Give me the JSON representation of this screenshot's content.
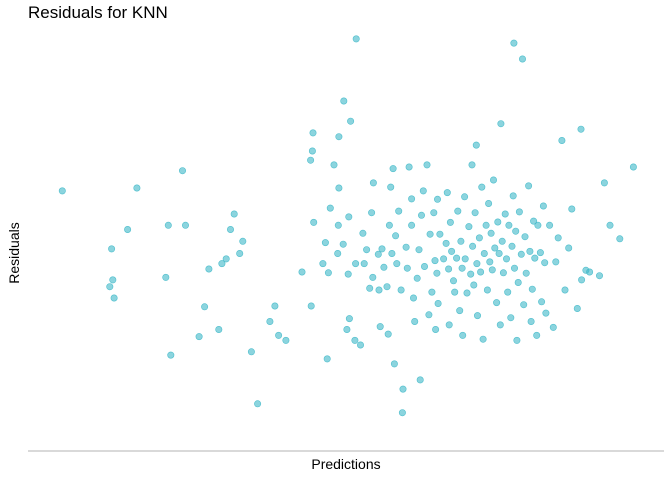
{
  "chart_data": {
    "type": "scatter",
    "title": "Residuals for KNN",
    "xlabel": "Predictions",
    "ylabel": "Residuals",
    "x_axis": {
      "ticks": "none",
      "range": [
        0,
        100
      ]
    },
    "y_axis": {
      "ticks": "none",
      "range": [
        0,
        100
      ]
    },
    "grid": false,
    "legend": "none",
    "point_color": "#3db8c8",
    "note": "Axes have no tick labels; point coordinates are on a relative 0-100 scale.",
    "points": [
      [
        4.6,
        60.5
      ],
      [
        12.6,
        46.7
      ],
      [
        12.3,
        37.7
      ],
      [
        13.0,
        35.0
      ],
      [
        12.8,
        39.3
      ],
      [
        15.2,
        51.3
      ],
      [
        16.7,
        61.2
      ],
      [
        21.4,
        39.9
      ],
      [
        21.8,
        52.3
      ],
      [
        24.1,
        65.3
      ],
      [
        22.2,
        21.4
      ],
      [
        24.6,
        52.3
      ],
      [
        26.8,
        25.8
      ],
      [
        27.7,
        32.9
      ],
      [
        28.4,
        41.9
      ],
      [
        30.0,
        27.5
      ],
      [
        30.5,
        43.2
      ],
      [
        31.2,
        44.3
      ],
      [
        31.9,
        51.3
      ],
      [
        32.5,
        55.0
      ],
      [
        33.4,
        45.6
      ],
      [
        33.9,
        48.5
      ],
      [
        35.3,
        22.2
      ],
      [
        36.3,
        9.8
      ],
      [
        38.3,
        29.4
      ],
      [
        39.7,
        26.1
      ],
      [
        39.1,
        33.1
      ],
      [
        40.9,
        24.9
      ],
      [
        43.5,
        41.2
      ],
      [
        45.0,
        33.1
      ],
      [
        45.4,
        53.0
      ],
      [
        44.9,
        67.8
      ],
      [
        45.2,
        70.0
      ],
      [
        45.3,
        74.3
      ],
      [
        46.9,
        43.2
      ],
      [
        47.3,
        48.2
      ],
      [
        47.8,
        41.0
      ],
      [
        47.6,
        20.5
      ],
      [
        48.1,
        56.4
      ],
      [
        48.7,
        66.7
      ],
      [
        49.3,
        45.6
      ],
      [
        49.4,
        52.3
      ],
      [
        49.5,
        61.2
      ],
      [
        49.5,
        73.4
      ],
      [
        50.2,
        47.8
      ],
      [
        50.8,
        27.5
      ],
      [
        51.0,
        40.7
      ],
      [
        51.1,
        54.3
      ],
      [
        51.4,
        77.1
      ],
      [
        51.2,
        30.1
      ],
      [
        52.1,
        24.9
      ],
      [
        52.2,
        43.2
      ],
      [
        53.0,
        23.8
      ],
      [
        53.4,
        50.4
      ],
      [
        53.6,
        43.2
      ],
      [
        54.0,
        46.5
      ],
      [
        54.5,
        37.3
      ],
      [
        54.8,
        55.3
      ],
      [
        55.0,
        39.9
      ],
      [
        55.1,
        62.4
      ],
      [
        55.9,
        45.4
      ],
      [
        56.0,
        36.9
      ],
      [
        56.2,
        28.2
      ],
      [
        56.5,
        46.7
      ],
      [
        56.8,
        42.3
      ],
      [
        57.3,
        37.7
      ],
      [
        57.5,
        26.4
      ],
      [
        57.7,
        52.3
      ],
      [
        57.9,
        61.4
      ],
      [
        58.1,
        45.6
      ],
      [
        58.3,
        65.8
      ],
      [
        58.5,
        19.3
      ],
      [
        58.7,
        49.8
      ],
      [
        58.9,
        43.2
      ],
      [
        59.2,
        55.7
      ],
      [
        59.6,
        36.9
      ],
      [
        59.8,
        7.7
      ],
      [
        59.9,
        13.3
      ],
      [
        60.4,
        47.1
      ],
      [
        60.6,
        42.1
      ],
      [
        60.9,
        66.2
      ],
      [
        61.3,
        52.3
      ],
      [
        61.3,
        58.6
      ],
      [
        61.6,
        35.0
      ],
      [
        61.8,
        29.4
      ],
      [
        62.2,
        39.7
      ],
      [
        62.5,
        46.5
      ],
      [
        62.7,
        15.5
      ],
      [
        62.9,
        54.7
      ],
      [
        63.2,
        60.5
      ],
      [
        63.4,
        42.5
      ],
      [
        63.8,
        66.7
      ],
      [
        64.1,
        31.0
      ],
      [
        64.3,
        50.2
      ],
      [
        64.6,
        36.4
      ],
      [
        64.9,
        55.3
      ],
      [
        65.1,
        43.9
      ],
      [
        65.2,
        27.5
      ],
      [
        65.4,
        40.9
      ],
      [
        65.5,
        58.5
      ],
      [
        65.6,
        33.7
      ],
      [
        65.9,
        50.2
      ],
      [
        66.5,
        44.3
      ],
      [
        66.9,
        48.0
      ],
      [
        67.1,
        60.1
      ],
      [
        67.3,
        41.9
      ],
      [
        67.4,
        28.6
      ],
      [
        67.6,
        53.0
      ],
      [
        67.8,
        46.1
      ],
      [
        68.1,
        39.1
      ],
      [
        68.3,
        36.4
      ],
      [
        68.6,
        44.5
      ],
      [
        68.8,
        55.7
      ],
      [
        69.1,
        32.0
      ],
      [
        69.3,
        48.5
      ],
      [
        69.5,
        42.1
      ],
      [
        69.6,
        26.1
      ],
      [
        69.9,
        59.1
      ],
      [
        70.0,
        44.3
      ],
      [
        70.3,
        36.2
      ],
      [
        70.6,
        52.0
      ],
      [
        70.9,
        40.7
      ],
      [
        71.1,
        66.7
      ],
      [
        71.2,
        47.3
      ],
      [
        71.4,
        38.1
      ],
      [
        71.6,
        55.3
      ],
      [
        71.9,
        43.2
      ],
      [
        71.8,
        71.4
      ],
      [
        72.0,
        30.8
      ],
      [
        72.3,
        49.3
      ],
      [
        72.5,
        41.2
      ],
      [
        72.7,
        61.4
      ],
      [
        72.9,
        25.2
      ],
      [
        73.1,
        45.6
      ],
      [
        73.4,
        52.3
      ],
      [
        73.6,
        36.9
      ],
      [
        73.8,
        57.5
      ],
      [
        74.0,
        43.6
      ],
      [
        74.2,
        50.4
      ],
      [
        74.4,
        41.7
      ],
      [
        74.6,
        63.1
      ],
      [
        74.8,
        46.9
      ],
      [
        75.1,
        33.9
      ],
      [
        75.3,
        53.1
      ],
      [
        75.5,
        45.6
      ],
      [
        75.7,
        28.6
      ],
      [
        75.8,
        76.5
      ],
      [
        76.0,
        48.5
      ],
      [
        76.2,
        41.0
      ],
      [
        76.5,
        55.0
      ],
      [
        76.7,
        44.3
      ],
      [
        76.9,
        36.4
      ],
      [
        77.1,
        52.3
      ],
      [
        77.4,
        30.3
      ],
      [
        77.6,
        47.3
      ],
      [
        77.8,
        59.3
      ],
      [
        78.0,
        42.1
      ],
      [
        78.2,
        50.9
      ],
      [
        78.4,
        24.9
      ],
      [
        78.6,
        38.7
      ],
      [
        78.8,
        55.5
      ],
      [
        79.1,
        45.4
      ],
      [
        79.3,
        91.9
      ],
      [
        79.5,
        33.4
      ],
      [
        79.7,
        49.6
      ],
      [
        79.9,
        40.9
      ],
      [
        80.3,
        61.7
      ],
      [
        80.5,
        46.1
      ],
      [
        80.7,
        29.4
      ],
      [
        80.9,
        37.1
      ],
      [
        81.1,
        53.3
      ],
      [
        81.3,
        44.5
      ],
      [
        81.6,
        26.1
      ],
      [
        81.8,
        52.3
      ],
      [
        82.2,
        45.8
      ],
      [
        82.4,
        34.1
      ],
      [
        82.7,
        56.9
      ],
      [
        82.9,
        43.4
      ],
      [
        83.1,
        31.4
      ],
      [
        83.7,
        52.3
      ],
      [
        84.3,
        28.0
      ],
      [
        84.7,
        43.6
      ],
      [
        85.1,
        49.3
      ],
      [
        85.7,
        72.5
      ],
      [
        86.2,
        36.9
      ],
      [
        86.8,
        46.9
      ],
      [
        87.3,
        56.2
      ],
      [
        88.2,
        32.5
      ],
      [
        88.9,
        39.3
      ],
      [
        89.6,
        41.6
      ],
      [
        90.2,
        41.2
      ],
      [
        91.8,
        40.3
      ],
      [
        92.6,
        62.4
      ],
      [
        93.5,
        52.3
      ],
      [
        95.1,
        49.1
      ],
      [
        97.3,
        66.2
      ],
      [
        50.3,
        81.9
      ],
      [
        52.3,
        96.7
      ],
      [
        77.9,
        95.7
      ],
      [
        88.8,
        75.2
      ]
    ]
  }
}
